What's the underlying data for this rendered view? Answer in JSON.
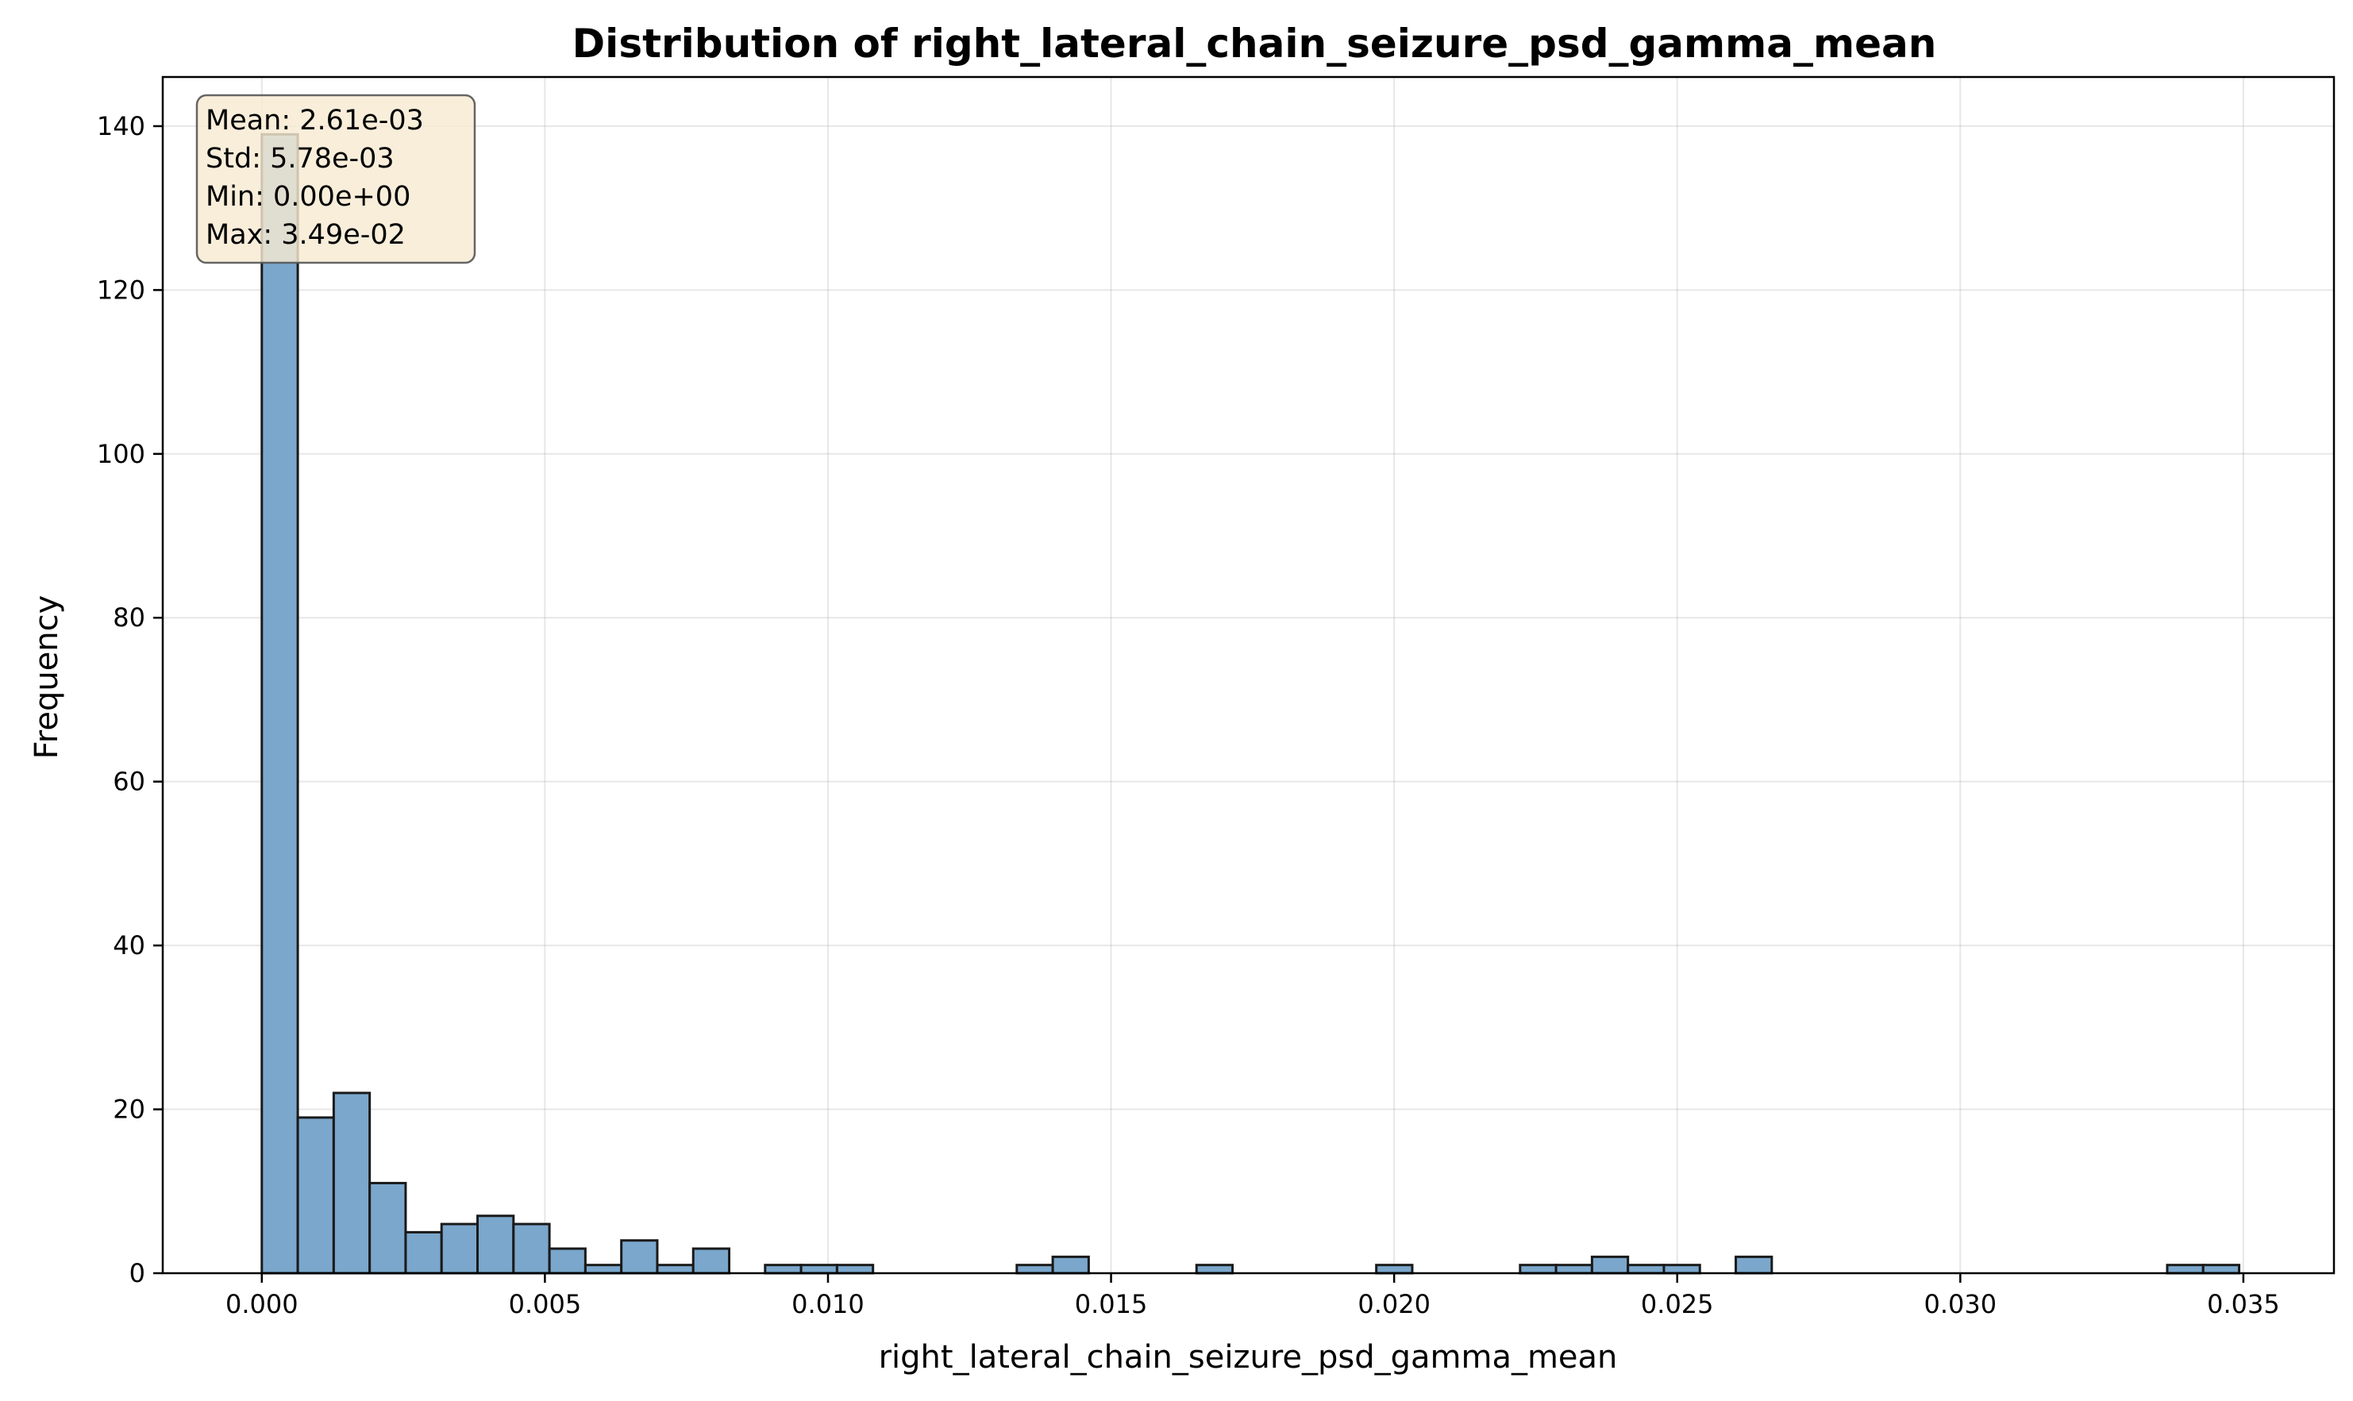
{
  "chart_data": {
    "type": "bar",
    "title": "Distribution of right_lateral_chain_seizure_psd_gamma_mean",
    "xlabel": "right_lateral_chain_seizure_psd_gamma_mean",
    "ylabel": "Frequency",
    "xlim": [
      -0.00175,
      0.0366
    ],
    "ylim": [
      0,
      146
    ],
    "x_ticks": [
      0.0,
      0.005,
      0.01,
      0.015,
      0.02,
      0.025,
      0.03,
      0.035
    ],
    "x_tick_labels": [
      "0.000",
      "0.005",
      "0.010",
      "0.015",
      "0.020",
      "0.025",
      "0.030",
      "0.035"
    ],
    "y_ticks": [
      0,
      20,
      40,
      60,
      80,
      100,
      120,
      140
    ],
    "y_tick_labels": [
      "0",
      "20",
      "40",
      "60",
      "80",
      "100",
      "120",
      "140"
    ],
    "grid": true,
    "bin_start": 0.0,
    "bin_width": 0.000635,
    "counts": [
      139,
      19,
      22,
      11,
      5,
      6,
      7,
      6,
      3,
      1,
      4,
      1,
      3,
      0,
      1,
      1,
      1,
      0,
      0,
      0,
      0,
      1,
      2,
      0,
      0,
      0,
      1,
      0,
      0,
      0,
      0,
      1,
      0,
      0,
      0,
      1,
      1,
      2,
      1,
      1,
      0,
      2,
      0,
      0,
      0,
      0,
      0,
      0,
      0,
      0,
      0,
      0,
      0,
      1,
      1
    ],
    "bar_color": "#7ba7cc",
    "edge_color": "#1a1a1a",
    "annotation_box": {
      "lines": [
        "Mean: 2.61e-03",
        "Std: 5.78e-03",
        "Min: 0.00e+00",
        "Max: 3.49e-02"
      ],
      "placement": "top-left",
      "background": "#f7ead2"
    }
  }
}
